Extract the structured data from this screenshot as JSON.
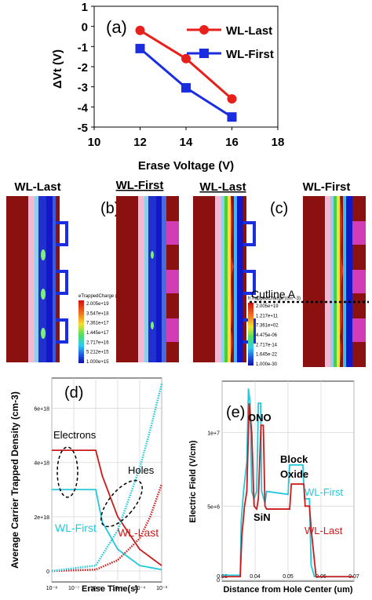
{
  "chart_data": [
    {
      "panel": "(a)",
      "type": "line",
      "xlabel": "Erase Voltage (V)",
      "ylabel": "ΔVt (V)",
      "xlim": [
        10,
        18
      ],
      "ylim": [
        -5,
        1
      ],
      "xticks": [
        "10",
        "12",
        "14",
        "16",
        "18"
      ],
      "yticks": [
        "1",
        "0",
        "-1",
        "-2",
        "-3",
        "-4",
        "-5"
      ],
      "legend_position": "top-right",
      "series": [
        {
          "name": "WL-Last",
          "color": "#e8201c",
          "marker": "circle",
          "x": [
            12,
            14,
            16
          ],
          "y": [
            -0.2,
            -1.6,
            -3.6
          ]
        },
        {
          "name": "WL-First",
          "color": "#1a2ee0",
          "marker": "square",
          "x": [
            12,
            14,
            16
          ],
          "y": [
            -1.1,
            -3.05,
            -4.5
          ]
        }
      ]
    },
    {
      "panel": "(d)",
      "type": "line",
      "xlabel": "Erase Time(s)",
      "ylabel": "Average Carrier Trapped Density (cm-3)",
      "x_scale": "log",
      "xticks": [
        "10⁻⁸",
        "10⁻⁷",
        "10⁻⁶",
        "10⁻⁵",
        "10⁻⁴",
        "10⁻³"
      ],
      "yticks": [
        "0",
        "2e+18",
        "4e+18",
        "6e+18"
      ],
      "ylim": [
        0,
        7e+18
      ],
      "annotations": [
        "Electrons",
        "Holes",
        "WL-First",
        "WL-Last"
      ],
      "series": [
        {
          "name": "WL-Last",
          "color": "#cc1a1a",
          "electrons": {
            "x": [
              1e-08,
              1e-06,
              2e-06,
              1e-05,
              0.0001,
              0.001
            ],
            "y": [
              4.45e+18,
              4.45e+18,
              3.5e+18,
              2e+18,
              8e+17,
              2e+17
            ]
          },
          "holes": {
            "x": [
              1e-08,
              1e-06,
              1e-05,
              0.0001,
              0.0003,
              0.001
            ],
            "y": [
              0,
              5e+16,
              4e+17,
              1.2e+18,
              2e+18,
              3.2e+18
            ]
          }
        },
        {
          "name": "WL-First",
          "color": "#22c8dc",
          "electrons": {
            "x": [
              1e-08,
              1e-06,
              2e-06,
              1e-05,
              0.0001,
              0.001
            ],
            "y": [
              3e+18,
              3e+18,
              1.8e+18,
              8e+17,
              2e+17,
              5e+16
            ]
          },
          "holes": {
            "x": [
              1e-08,
              1e-06,
              1e-05,
              0.0001,
              0.0003,
              0.001
            ],
            "y": [
              0,
              2e+17,
              1.5e+18,
              3.8e+18,
              5.2e+18,
              6.9e+18
            ]
          }
        }
      ]
    },
    {
      "panel": "(e)",
      "type": "line",
      "xlabel": "Distance from Hole Center (um)",
      "ylabel": "Electric Field (V/cm)",
      "xlim": [
        0.03,
        0.07
      ],
      "ylim": [
        0,
        13500000.0
      ],
      "xticks": [
        "0.03",
        "0.04",
        "0.05",
        "0.06",
        "0.07"
      ],
      "yticks": [
        "0",
        "5e+6",
        "1e+7"
      ],
      "annotations": [
        "ONO",
        "Block",
        "Oxide",
        "SiN"
      ],
      "series": [
        {
          "name": "WL-First",
          "color": "#22c8dc",
          "x": [
            0.03,
            0.0355,
            0.0358,
            0.0365,
            0.0375,
            0.038,
            0.0385,
            0.039,
            0.0397,
            0.0405,
            0.041,
            0.0417,
            0.042,
            0.043,
            0.0435,
            0.05,
            0.0505,
            0.0545,
            0.055,
            0.0565,
            0.057,
            0.058,
            0.07
          ],
          "y": [
            300000.0,
            300000.0,
            4000000.0,
            6000000.0,
            8000000.0,
            13000000.0,
            12000000.0,
            6000000.0,
            5500000.0,
            6000000.0,
            12000000.0,
            12000000.0,
            6000000.0,
            5200000.0,
            6000000.0,
            5800000.0,
            7800000.0,
            7800000.0,
            5500000.0,
            5500000.0,
            1000000.0,
            200000.0,
            200000.0
          ]
        },
        {
          "name": "WL-Last",
          "color": "#cc1a1a",
          "x": [
            0.03,
            0.0355,
            0.036,
            0.0368,
            0.0375,
            0.0382,
            0.039,
            0.0397,
            0.0405,
            0.041,
            0.0418,
            0.0425,
            0.043,
            0.0435,
            0.0505,
            0.051,
            0.0548,
            0.0552,
            0.0565,
            0.057,
            0.0585,
            0.07
          ],
          "y": [
            200000.0,
            200000.0,
            3000000.0,
            5000000.0,
            6000000.0,
            12000000.0,
            10000000.0,
            5000000.0,
            4800000.0,
            5500000.0,
            10500000.0,
            10500000.0,
            5000000.0,
            4800000.0,
            4800000.0,
            6500000.0,
            6500000.0,
            5000000.0,
            5000000.0,
            3500000.0,
            200000.0,
            200000.0
          ]
        }
      ]
    }
  ],
  "panels": {
    "a": {
      "label": "(a)",
      "xlabel": "Erase Voltage (V)",
      "ylabel": "ΔVt (V)",
      "legend": [
        "WL-Last",
        "WL-First"
      ]
    },
    "middle": {
      "b_label": "(b)",
      "c_label": "(c)",
      "titles": [
        "WL-Last",
        "WL-First",
        "WL-Last",
        "WL-First"
      ],
      "cutline": "Cutline A",
      "colorbar_title": "eTrappedCharge (cm^-3)",
      "colorbar_title_h": "hTrappedCharge (cm^-3)",
      "colorbar_b": [
        "2.005e+19",
        "3.547e+18",
        "7.361e+17",
        "1.445e+17",
        "2.717e+16",
        "5.212e+15",
        "1.000e+15"
      ],
      "colorbar_c": [
        "2.005e+19",
        "1.217e+11",
        "7.361e+02",
        "4.475e-06",
        "2.717e-14",
        "1.645e-22",
        "1.000e-30"
      ]
    },
    "d": {
      "label": "(d)",
      "xlabel": "Erase Time(s)",
      "ylabel": "Average Carrier Trapped Density (cm-3)",
      "yticks": [
        "0",
        "2e+18",
        "4e+18",
        "6e+18"
      ],
      "electrons": "Electrons",
      "holes": "Holes",
      "wl_first": "WL-First",
      "wl_last": "WL-Last"
    },
    "e": {
      "label": "(e)",
      "xlabel": "Distance from Hole Center (um)",
      "ylabel": "Electric Field (V/cm)",
      "yticks": [
        "0",
        "5e+6",
        "1e+7"
      ],
      "xticks": [
        "0.03",
        "0.04",
        "0.05",
        "0.06",
        "0.07"
      ],
      "ono": "ONO",
      "block": "Block",
      "oxide": "Oxide",
      "sin": "SiN",
      "wl_first": "WL-First",
      "wl_last": "WL-Last"
    }
  },
  "colors": {
    "wl_last": "#e8201c",
    "wl_first": "#1a2ee0",
    "cyan": "#22c8dc",
    "maroon": "#8b1010",
    "pink": "#f4b8d0",
    "magenta": "#d23cb4"
  }
}
